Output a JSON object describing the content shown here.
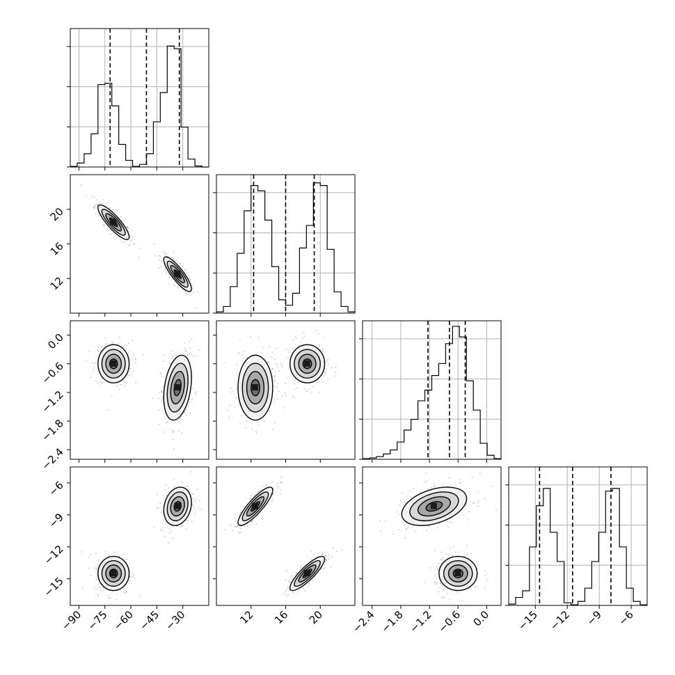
{
  "chart_data": {
    "type": "corner",
    "title": "",
    "parameters": [
      {
        "label": "",
        "range": [
          -95,
          -15
        ],
        "ticks": [
          -90,
          -75,
          -60,
          -45,
          -30
        ],
        "tick_labels": [
          "−90",
          "−75",
          "−60",
          "−45",
          "−30"
        ]
      },
      {
        "label": "",
        "range": [
          8,
          24
        ],
        "ticks": [
          12,
          16,
          20
        ],
        "tick_labels": [
          "12",
          "16",
          "20"
        ]
      },
      {
        "label": "",
        "range": [
          -2.6,
          0.3
        ],
        "ticks": [
          -2.4,
          -1.8,
          -1.2,
          -0.6,
          0.0
        ],
        "tick_labels": [
          "−2.4",
          "−1.8",
          "−1.2",
          "−0.6",
          "0.0"
        ]
      },
      {
        "label": "",
        "range": [
          -17.5,
          -4.5
        ],
        "ticks": [
          -15,
          -12,
          -9,
          -6
        ],
        "tick_labels": [
          "−15",
          "−12",
          "−9",
          "−6"
        ]
      }
    ],
    "histograms": [
      {
        "bins": [
          -95,
          -91,
          -87,
          -83,
          -79,
          -75,
          -71,
          -67,
          -63,
          -59,
          -55,
          -51,
          -47,
          -43,
          -39,
          -35,
          -31,
          -27,
          -23,
          -19,
          -15
        ],
        "counts": [
          0.005,
          0.03,
          0.1,
          0.25,
          0.62,
          0.63,
          0.46,
          0.17,
          0.05,
          0.005,
          0.02,
          0.1,
          0.34,
          0.56,
          0.91,
          0.89,
          0.3,
          0.06,
          0.008,
          0.0
        ],
        "quantiles": [
          -72,
          -51,
          -32
        ],
        "ymax": 1.0
      },
      {
        "bins": [
          8,
          8.8,
          9.6,
          10.4,
          11.2,
          12.0,
          12.8,
          13.6,
          14.4,
          15.2,
          16.0,
          16.8,
          17.6,
          18.4,
          19.2,
          20.0,
          20.8,
          21.6,
          22.4,
          23.2,
          24.0
        ],
        "counts": [
          0.01,
          0.05,
          0.2,
          0.45,
          0.77,
          0.96,
          0.92,
          0.7,
          0.35,
          0.1,
          0.06,
          0.15,
          0.49,
          0.66,
          0.98,
          0.96,
          0.48,
          0.16,
          0.05,
          0.01
        ],
        "quantiles": [
          12.3,
          16.0,
          19.3
        ],
        "ymax": 1.0
      },
      {
        "bins": [
          -2.6,
          -2.455,
          -2.31,
          -2.165,
          -2.02,
          -1.875,
          -1.73,
          -1.585,
          -1.44,
          -1.295,
          -1.15,
          -1.005,
          -0.86,
          -0.715,
          -0.57,
          -0.425,
          -0.28,
          -0.135,
          0.01,
          0.155,
          0.3
        ],
        "counts": [
          0.005,
          0.01,
          0.02,
          0.04,
          0.07,
          0.13,
          0.22,
          0.3,
          0.44,
          0.52,
          0.63,
          0.72,
          0.87,
          1.0,
          0.92,
          0.59,
          0.37,
          0.12,
          0.03,
          0.005
        ],
        "quantiles": [
          -1.23,
          -0.78,
          -0.45
        ],
        "ymax": 1.0
      },
      {
        "bins": [
          -17.5,
          -16.85,
          -16.2,
          -15.55,
          -14.9,
          -14.25,
          -13.6,
          -12.95,
          -12.3,
          -11.65,
          -11.0,
          -10.35,
          -9.7,
          -9.05,
          -8.4,
          -7.75,
          -7.1,
          -6.45,
          -5.8,
          -5.15,
          -4.5
        ],
        "counts": [
          0.01,
          0.06,
          0.11,
          0.44,
          0.75,
          0.88,
          0.55,
          0.33,
          0.02,
          0.005,
          0.03,
          0.13,
          0.33,
          0.55,
          0.86,
          0.88,
          0.44,
          0.13,
          0.03,
          0.005
        ],
        "quantiles": [
          -14.6,
          -11.5,
          -7.9
        ],
        "ymax": 1.0
      }
    ],
    "modes": [
      {
        "x": [
          -70,
          18.5,
          -0.6,
          -14.5
        ],
        "sd": [
          4.5,
          1.0,
          0.2,
          0.8
        ]
      },
      {
        "x": [
          -33,
          12.5,
          -1.1,
          -8.2
        ],
        "sd": [
          4.0,
          1.0,
          0.34,
          0.9
        ]
      }
    ],
    "contour_levels": [
      0.5,
      1.0,
      1.5,
      2.0
    ],
    "grid": true
  }
}
